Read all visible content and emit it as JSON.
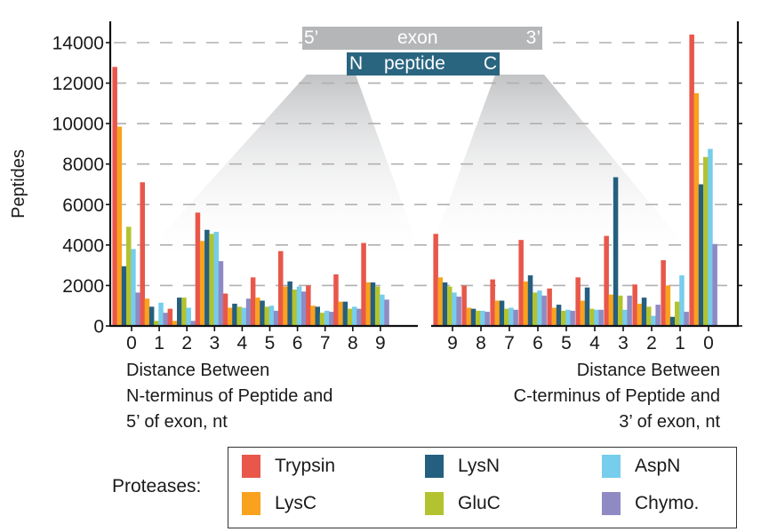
{
  "chart_data": {
    "type": "bar",
    "title": "",
    "ylabel": "Peptides",
    "ylim": [
      0,
      15000
    ],
    "yticks": [
      0,
      2000,
      4000,
      6000,
      8000,
      10000,
      12000,
      14000
    ],
    "ytick_labels": [
      "0",
      "2000",
      "4000",
      "6000",
      "8000",
      "10000",
      "12000",
      "14000"
    ],
    "grid": "horizontal dashed",
    "series_names": [
      "Trypsin",
      "LysC",
      "LysN",
      "GluC",
      "AspN",
      "Chymo."
    ],
    "colors": [
      "#e8574a",
      "#f9a21e",
      "#255f80",
      "#b3c32f",
      "#76cdec",
      "#8f8ac4"
    ],
    "panels": [
      {
        "name": "N-terminus",
        "categories": [
          "0",
          "1",
          "2",
          "3",
          "4",
          "5",
          "6",
          "7",
          "8",
          "9"
        ],
        "xlabel_lines": [
          "Distance Between",
          "N-terminus of Peptide and",
          "5’ of exon, nt"
        ],
        "series": [
          {
            "name": "Trypsin",
            "values": [
              12800,
              7100,
              850,
              5600,
              1600,
              2400,
              3700,
              2000,
              2550,
              4100
            ]
          },
          {
            "name": "LysC",
            "values": [
              9850,
              1350,
              250,
              4200,
              900,
              1400,
              1950,
              1000,
              1200,
              2150
            ]
          },
          {
            "name": "LysN",
            "values": [
              2950,
              950,
              1400,
              4750,
              1100,
              1250,
              2200,
              950,
              1200,
              2150
            ]
          },
          {
            "name": "GluC",
            "values": [
              4900,
              250,
              1400,
              4550,
              950,
              950,
              1800,
              650,
              850,
              1950
            ]
          },
          {
            "name": "AspN",
            "values": [
              3800,
              1150,
              900,
              4650,
              900,
              1000,
              1950,
              750,
              950,
              1550
            ]
          },
          {
            "name": "Chymo.",
            "values": [
              1650,
              650,
              250,
              3200,
              1350,
              750,
              1700,
              700,
              850,
              1300
            ]
          }
        ]
      },
      {
        "name": "C-terminus",
        "categories": [
          "9",
          "8",
          "7",
          "6",
          "5",
          "4",
          "3",
          "2",
          "1",
          "0"
        ],
        "xlabel_lines": [
          "Distance Between",
          "C-terminus of Peptide and",
          "3’ of exon, nt"
        ],
        "series": [
          {
            "name": "Trypsin",
            "values": [
              4550,
              2000,
              2300,
              4250,
              1850,
              2400,
              4450,
              2050,
              3250,
              14400
            ]
          },
          {
            "name": "LysC",
            "values": [
              2400,
              900,
              1250,
              2200,
              900,
              1250,
              1550,
              1100,
              2000,
              11500
            ]
          },
          {
            "name": "LysN",
            "values": [
              2150,
              850,
              1250,
              2500,
              1050,
              1900,
              7350,
              1400,
              450,
              7000
            ]
          },
          {
            "name": "GluC",
            "values": [
              1950,
              750,
              850,
              1650,
              750,
              850,
              1500,
              950,
              1200,
              8350
            ]
          },
          {
            "name": "AspN",
            "values": [
              1650,
              750,
              900,
              1750,
              800,
              800,
              800,
              500,
              2500,
              8750
            ]
          },
          {
            "name": "Chymo.",
            "values": [
              1450,
              700,
              800,
              1500,
              750,
              800,
              1500,
              1050,
              700,
              4050
            ]
          }
        ]
      }
    ],
    "legend": {
      "title": "Proteases:",
      "placement": "bottom",
      "entries": [
        "Trypsin",
        "LysC",
        "LysN",
        "GluC",
        "AspN",
        "Chymo."
      ]
    },
    "annotation": {
      "exon_label": "exon",
      "exon_5prime": "5’",
      "exon_3prime": "3’",
      "peptide_label": "peptide",
      "peptide_n": "N",
      "peptide_c": "C"
    }
  },
  "colors": {
    "exon_bar": "#b5b6b8",
    "peptide_bar": "#2a6580",
    "grid": "#b0b0b0"
  }
}
